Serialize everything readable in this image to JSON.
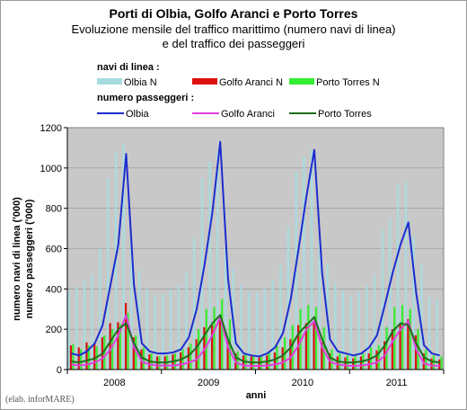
{
  "chart_data": {
    "type": "bar+line",
    "title": "Porti di Olbia, Golfo Aranci e Porto Torres",
    "subtitle_line1": "Evoluzione mensile del traffico marittimo (numero navi di linea)",
    "subtitle_line2": "e del traffico dei passeggeri",
    "legend_bars_heading": "navi di linea :",
    "legend_lines_heading": "numero passeggeri :",
    "ylabel_line1": "numero navi di linea ('000)",
    "ylabel_line2": "numero passeggeri ('000)",
    "xlabel": "anni",
    "credit": "(elab. inforMARE)",
    "ylim": [
      0,
      1200
    ],
    "yticks": [
      "0",
      "200",
      "400",
      "600",
      "800",
      "1000",
      "1200"
    ],
    "year_labels": [
      "2008",
      "2009",
      "2010",
      "2011"
    ],
    "bar_series": [
      {
        "name": "Olbia N",
        "color": "#a8dce0",
        "values": [
          390,
          410,
          440,
          470,
          600,
          950,
          1080,
          1120,
          620,
          490,
          400,
          370,
          375,
          395,
          420,
          480,
          650,
          950,
          1030,
          1080,
          600,
          500,
          420,
          385,
          380,
          400,
          440,
          520,
          710,
          980,
          1060,
          1090,
          640,
          520,
          430,
          390,
          365,
          385,
          420,
          470,
          690,
          750,
          920,
          930,
          660,
          520,
          360,
          345
        ]
      },
      {
        "name": "Golfo Aranci N",
        "color": "#dd1111",
        "values": [
          120,
          110,
          135,
          130,
          160,
          230,
          235,
          330,
          160,
          100,
          75,
          65,
          65,
          75,
          85,
          110,
          150,
          210,
          220,
          250,
          140,
          80,
          70,
          65,
          60,
          70,
          85,
          110,
          150,
          220,
          230,
          240,
          135,
          80,
          65,
          60,
          55,
          65,
          80,
          95,
          140,
          200,
          230,
          250,
          170,
          80,
          55,
          50
        ]
      },
      {
        "name": "Porto Torres N",
        "color": "#33ee33",
        "values": [
          125,
          100,
          120,
          115,
          170,
          200,
          225,
          280,
          170,
          110,
          80,
          65,
          70,
          80,
          100,
          130,
          200,
          300,
          310,
          350,
          250,
          90,
          80,
          70,
          70,
          90,
          120,
          160,
          220,
          300,
          320,
          310,
          210,
          100,
          80,
          70,
          65,
          80,
          110,
          120,
          210,
          310,
          320,
          300,
          200,
          100,
          70,
          65
        ]
      }
    ],
    "line_series": [
      {
        "name": "Olbia",
        "color": "#1c2ccf",
        "values": [
          80,
          70,
          90,
          130,
          220,
          420,
          620,
          1070,
          420,
          130,
          90,
          80,
          80,
          85,
          100,
          160,
          300,
          520,
          780,
          1130,
          450,
          130,
          80,
          70,
          65,
          80,
          110,
          180,
          350,
          600,
          860,
          1090,
          480,
          150,
          90,
          80,
          70,
          80,
          110,
          170,
          320,
          480,
          620,
          730,
          380,
          120,
          80,
          70
        ]
      },
      {
        "name": "Golfo Aranci",
        "color": "#e040e0",
        "values": [
          25,
          20,
          25,
          35,
          55,
          100,
          170,
          270,
          110,
          40,
          25,
          20,
          20,
          20,
          25,
          35,
          50,
          100,
          170,
          260,
          110,
          35,
          20,
          18,
          18,
          20,
          25,
          35,
          60,
          120,
          200,
          240,
          110,
          40,
          25,
          20,
          18,
          20,
          25,
          35,
          70,
          140,
          200,
          240,
          100,
          30,
          20,
          18
        ]
      },
      {
        "name": "Porto Torres",
        "color": "#1f6e1f",
        "values": [
          40,
          35,
          45,
          55,
          80,
          140,
          200,
          230,
          130,
          60,
          40,
          35,
          35,
          40,
          50,
          70,
          110,
          170,
          230,
          270,
          150,
          60,
          40,
          35,
          35,
          40,
          50,
          70,
          110,
          180,
          220,
          260,
          150,
          60,
          40,
          35,
          35,
          40,
          50,
          70,
          120,
          190,
          230,
          220,
          130,
          60,
          40,
          35
        ]
      }
    ]
  }
}
